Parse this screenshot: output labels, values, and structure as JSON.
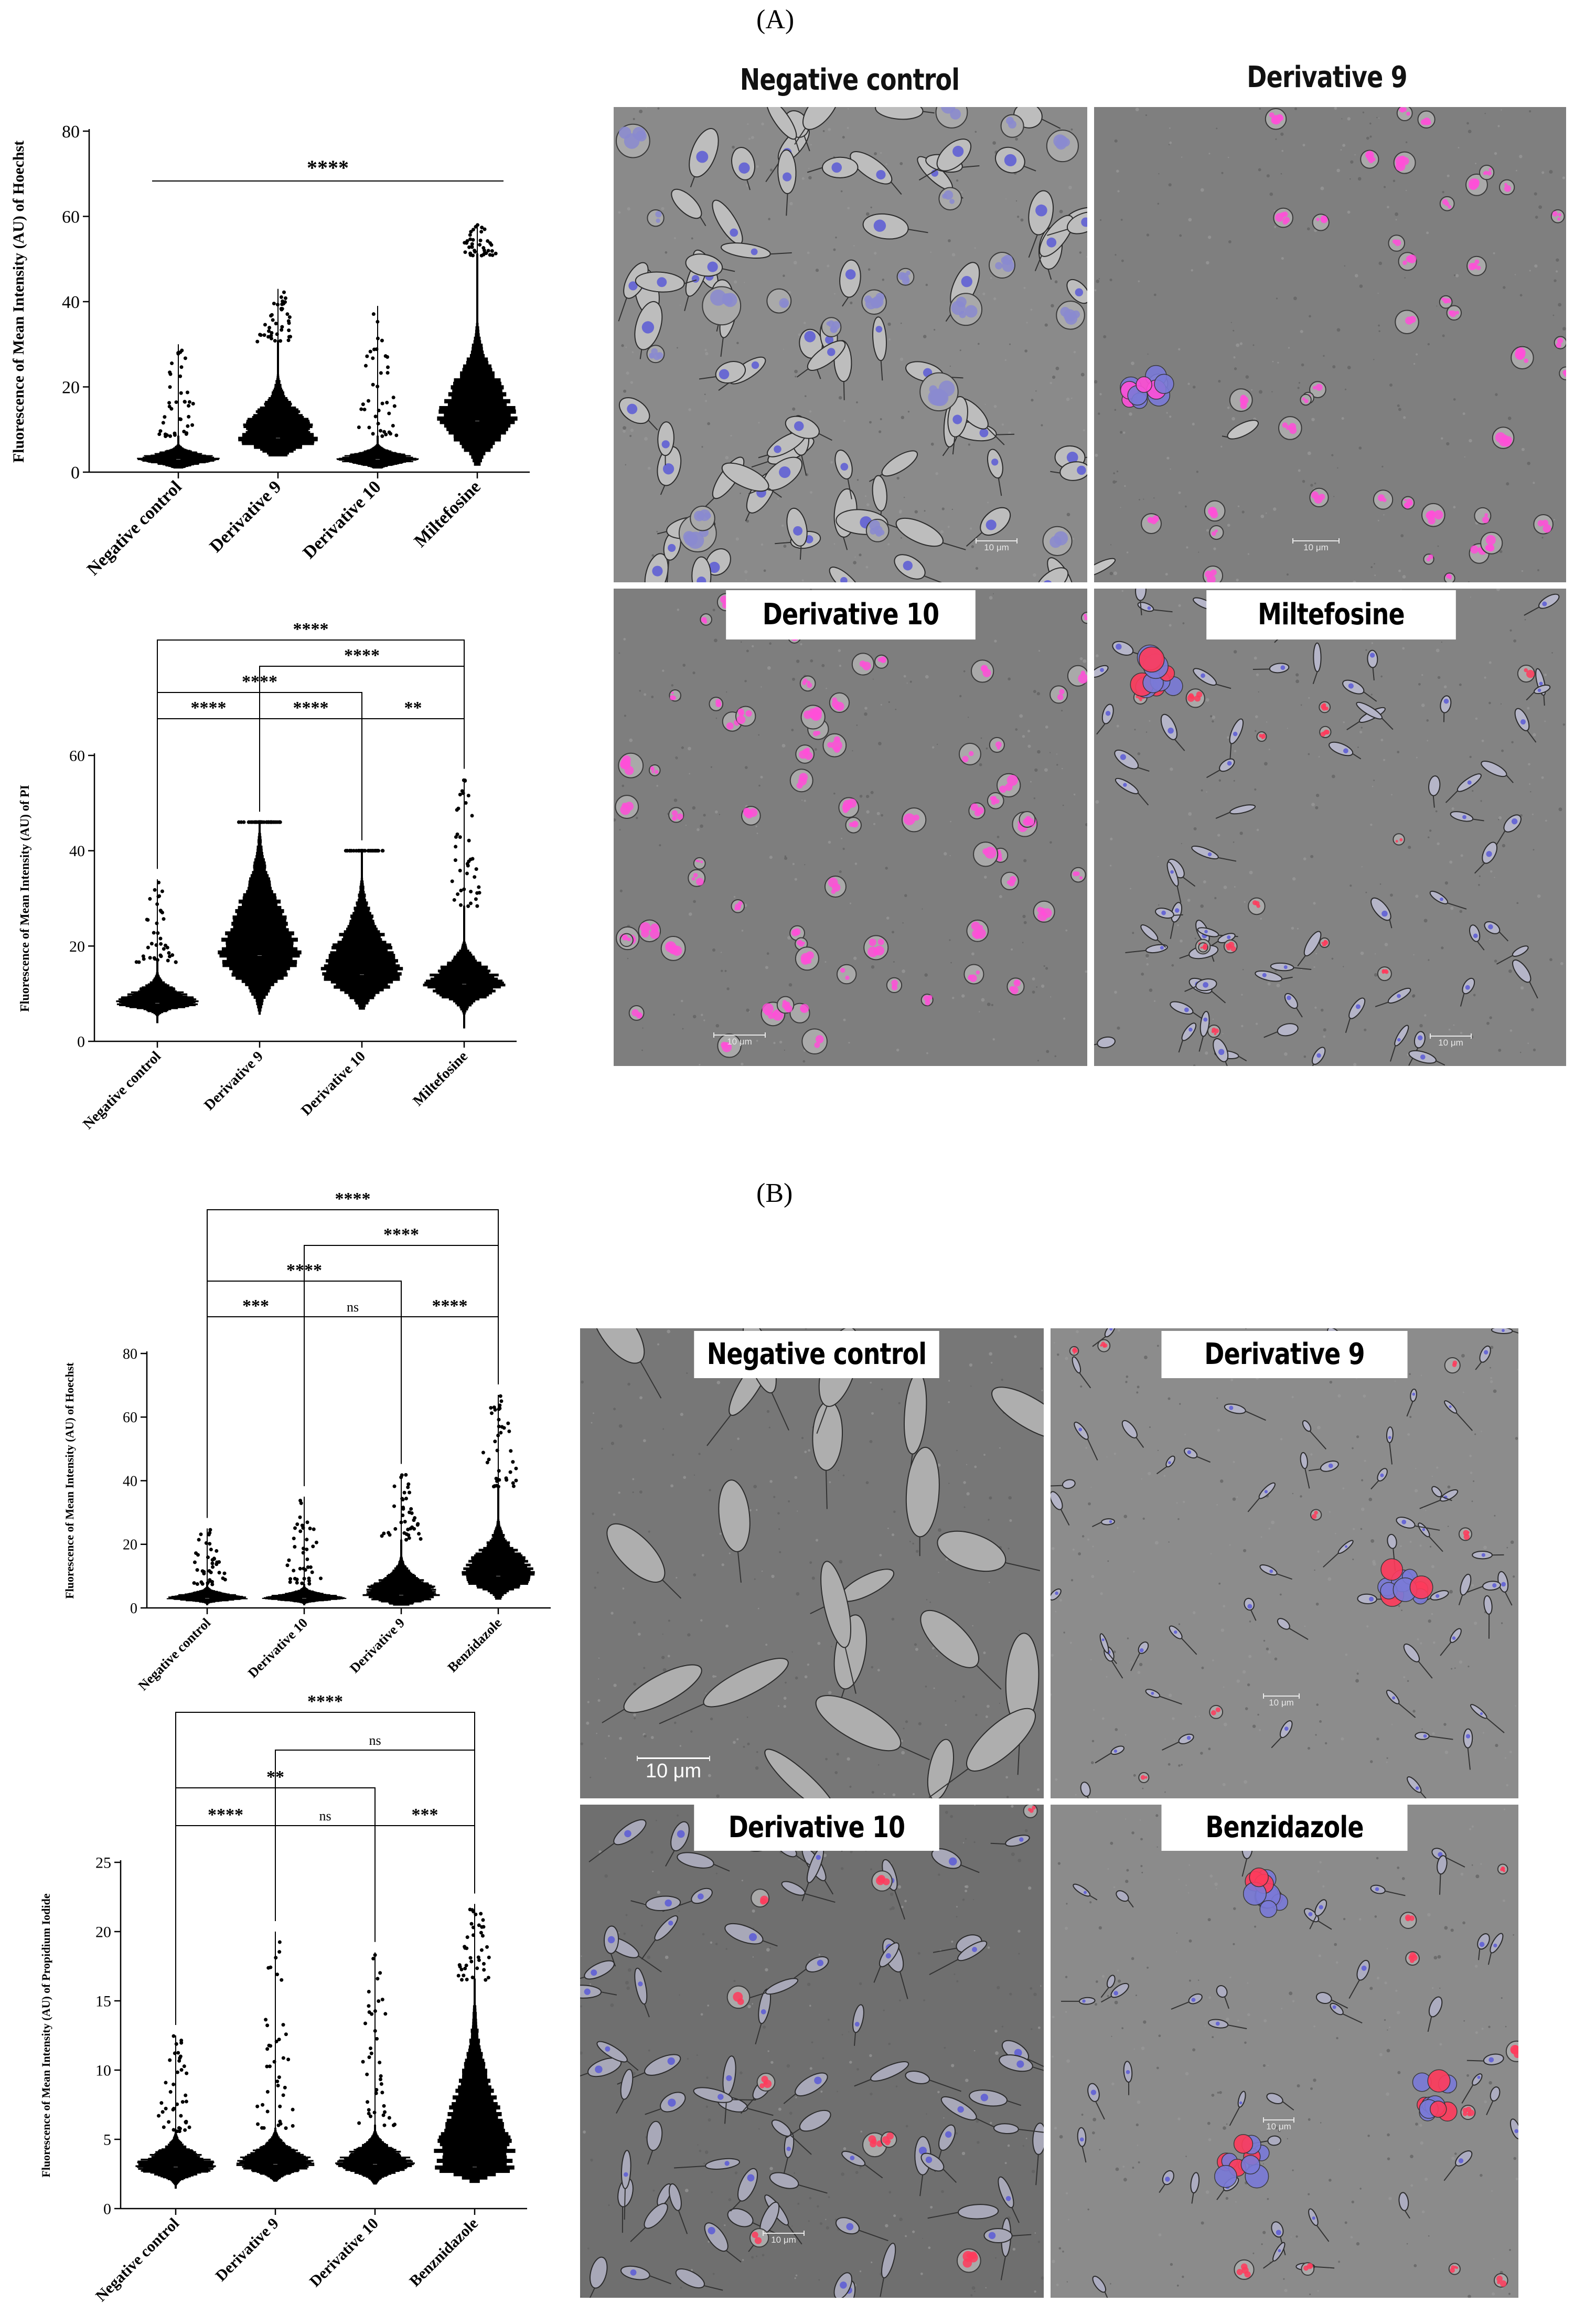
{
  "panels": {
    "a_label": "(A)",
    "b_label": "(B)"
  },
  "micrographs": {
    "a_negative_control": "Negative control",
    "a_derivative_9": "Derivative 9",
    "a_derivative_10": "Derivative 10",
    "a_miltefosine": "Miltefosine",
    "b_negative_control": "Negative control",
    "b_derivative_9": "Derivative 9",
    "b_derivative_10": "Derivative 10",
    "b_benzidazole": "Benzidazole",
    "scale_small": "10 μm",
    "scale_big": "10 μm"
  },
  "colors": {
    "background": "#7d7d7d",
    "cell": "#d4d4d4",
    "pi_stain": "#ff4fd8",
    "hoechst_stain": "#5b5bd6",
    "red_stain": "#ff3b5c",
    "violin": "#000000"
  },
  "chart_data": [
    {
      "type": "violin",
      "id": "a_hoechst",
      "ylabel": "Fluorescence of Mean Intensity (AU) of Hoechst",
      "categories": [
        "Negative control",
        "Derivative 9",
        "Derivative 10",
        "Miltefosine"
      ],
      "ylim": [
        0,
        80
      ],
      "yticks": [
        "0",
        "20",
        "40",
        "60",
        "80"
      ],
      "ytick_values": [
        0,
        20,
        40,
        60,
        80
      ],
      "series": [
        {
          "median": 3,
          "q1": 2,
          "q3": 4,
          "min": 1,
          "max": 30
        },
        {
          "median": 8,
          "q1": 5,
          "q3": 13,
          "min": 4,
          "max": 43
        },
        {
          "median": 3,
          "q1": 2,
          "q3": 4,
          "min": 1,
          "max": 39
        },
        {
          "median": 12,
          "q1": 6,
          "q3": 20,
          "min": 2,
          "max": 58
        }
      ],
      "comparisons": [
        {
          "from": 0,
          "to": 3,
          "label": "****",
          "style": "line"
        }
      ]
    },
    {
      "type": "violin",
      "id": "a_pi",
      "ylabel": "Fluorescence of Mean Intensity (AU) of PI",
      "categories": [
        "Negative control",
        "Derivative 9",
        "Derivative 10",
        "Miltefosine"
      ],
      "ylim": [
        0,
        60
      ],
      "yticks": [
        "0",
        "20",
        "40",
        "60"
      ],
      "ytick_values": [
        0,
        20,
        40,
        60
      ],
      "series": [
        {
          "median": 8,
          "q1": 7,
          "q3": 10,
          "min": 4,
          "max": 34
        },
        {
          "median": 18,
          "q1": 12,
          "q3": 27,
          "min": 6,
          "max": 46
        },
        {
          "median": 14,
          "q1": 10,
          "q3": 21,
          "min": 7,
          "max": 40
        },
        {
          "median": 12,
          "q1": 9,
          "q3": 15,
          "min": 3,
          "max": 55
        }
      ],
      "comparisons": [
        {
          "from": 0,
          "to": 1,
          "label": "****",
          "level": 0
        },
        {
          "from": 1,
          "to": 2,
          "label": "****",
          "level": 0
        },
        {
          "from": 2,
          "to": 3,
          "label": "**",
          "level": 0
        },
        {
          "from": 0,
          "to": 2,
          "label": "****",
          "level": 1
        },
        {
          "from": 1,
          "to": 3,
          "label": "****",
          "level": 2
        },
        {
          "from": 0,
          "to": 3,
          "label": "****",
          "level": 3
        }
      ]
    },
    {
      "type": "violin",
      "id": "b_hoechst",
      "ylabel": "Fluorescence of Mean Intensity (AU) of Hoechst",
      "categories": [
        "Negative control",
        "Derivative 10",
        "Derivative 9",
        "Benzidazole"
      ],
      "ylim": [
        0,
        80
      ],
      "yticks": [
        "0",
        "20",
        "40",
        "60",
        "80"
      ],
      "ytick_values": [
        0,
        20,
        40,
        60,
        80
      ],
      "series": [
        {
          "median": 3,
          "q1": 2.5,
          "q3": 4,
          "min": 1,
          "max": 25
        },
        {
          "median": 3,
          "q1": 2.5,
          "q3": 4,
          "min": 1,
          "max": 35
        },
        {
          "median": 4,
          "q1": 2,
          "q3": 8,
          "min": 1,
          "max": 42
        },
        {
          "median": 10,
          "q1": 6,
          "q3": 16,
          "min": 3,
          "max": 67
        }
      ],
      "comparisons": [
        {
          "from": 0,
          "to": 1,
          "label": "***",
          "level": 0
        },
        {
          "from": 1,
          "to": 2,
          "label": "ns",
          "level": 0
        },
        {
          "from": 2,
          "to": 3,
          "label": "****",
          "level": 0
        },
        {
          "from": 0,
          "to": 2,
          "label": "****",
          "level": 1
        },
        {
          "from": 1,
          "to": 3,
          "label": "****",
          "level": 2
        },
        {
          "from": 0,
          "to": 3,
          "label": "****",
          "level": 3
        }
      ]
    },
    {
      "type": "violin",
      "id": "b_pi",
      "ylabel": "Fluorescence of Mean Intensity (AU) of Propidium Iodide",
      "categories": [
        "Negative control",
        "Derivative 9",
        "Derivative 10",
        "Benznidazole"
      ],
      "ylim": [
        0,
        25
      ],
      "yticks": [
        "0",
        "5",
        "10",
        "15",
        "20",
        "25"
      ],
      "ytick_values": [
        0,
        5,
        10,
        15,
        20,
        25
      ],
      "series": [
        {
          "median": 3,
          "q1": 2.7,
          "q3": 3.6,
          "min": 1.5,
          "max": 12.5
        },
        {
          "median": 3.2,
          "q1": 2.9,
          "q3": 3.8,
          "min": 2,
          "max": 20
        },
        {
          "median": 3.2,
          "q1": 2.8,
          "q3": 3.8,
          "min": 1.8,
          "max": 18.5
        },
        {
          "median": 3,
          "q1": 2.7,
          "q3": 7,
          "min": 2,
          "max": 22
        }
      ],
      "comparisons": [
        {
          "from": 0,
          "to": 1,
          "label": "****",
          "level": 0
        },
        {
          "from": 1,
          "to": 2,
          "label": "ns",
          "level": 0
        },
        {
          "from": 2,
          "to": 3,
          "label": "***",
          "level": 0
        },
        {
          "from": 0,
          "to": 2,
          "label": "**",
          "level": 1
        },
        {
          "from": 1,
          "to": 3,
          "label": "ns",
          "level": 2
        },
        {
          "from": 0,
          "to": 3,
          "label": "****",
          "level": 3
        }
      ]
    }
  ]
}
